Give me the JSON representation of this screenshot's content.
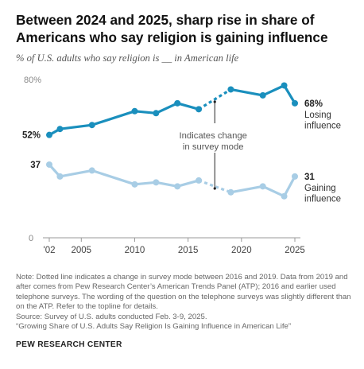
{
  "header": {
    "title": "Between 2024 and 2025, sharp rise in share of Americans who say religion is gaining influence",
    "subtitle": "% of U.S. adults who say religion is __ in American life"
  },
  "chart_data": {
    "type": "line",
    "x_ticks": [
      "'02",
      "2005",
      "2010",
      "2015",
      "2020",
      "2025"
    ],
    "y_ticks": [
      "80%",
      "0"
    ],
    "ylim": [
      0,
      80
    ],
    "grid": false,
    "series": [
      {
        "name": "Losing influence",
        "label_lines": [
          "Losing",
          "influence"
        ],
        "color": "#1a8fbd",
        "x": [
          2002,
          2003,
          2006,
          2010,
          2012,
          2014,
          2016,
          2019,
          2022,
          2024,
          2025
        ],
        "y": [
          52,
          55,
          57,
          64,
          63,
          68,
          65,
          75,
          72,
          77,
          68
        ],
        "first_label": "52%",
        "last_label": "68%"
      },
      {
        "name": "Gaining influence",
        "label_lines": [
          "Gaining",
          "influence"
        ],
        "color": "#a8cde5",
        "x": [
          2002,
          2003,
          2006,
          2010,
          2012,
          2014,
          2016,
          2019,
          2022,
          2024,
          2025
        ],
        "y": [
          37,
          31,
          34,
          27,
          28,
          26,
          29,
          23,
          26,
          21,
          31
        ],
        "first_label": "37",
        "last_label": "31"
      }
    ],
    "dashed_between": [
      2016,
      2019
    ],
    "annotation": {
      "lines": [
        "Indicates change",
        "in survey mode"
      ],
      "x": 2017.5
    }
  },
  "notes": {
    "lines": [
      "Note: Dotted line indicates a change in survey mode between 2016 and 2019. Data from 2019 and after comes from Pew Research Center’s American Trends Panel (ATP); 2016 and earlier used telephone surveys. The wording of the question on the telephone surveys was slightly different than on the ATP. Refer to the topline for details.",
      "Source: Survey of U.S. adults conducted Feb. 3-9, 2025.",
      "“Growing Share of U.S. Adults Say Religion Is Gaining Influence in American Life”"
    ],
    "brand": "PEW RESEARCH CENTER"
  }
}
